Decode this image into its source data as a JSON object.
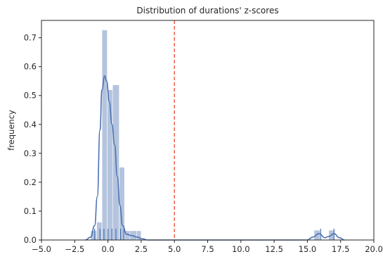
{
  "chart_data": {
    "type": "histogram",
    "title": "Distribution of durations' z-scores",
    "xlabel": "",
    "ylabel": "frequency",
    "xlim": [
      -5.0,
      20.0
    ],
    "ylim": [
      0.0,
      0.76
    ],
    "x_ticks": [
      "−5.0",
      "−2.5",
      "0.0",
      "2.5",
      "5.0",
      "7.5",
      "10.0",
      "12.5",
      "15.0",
      "17.5",
      "20.0"
    ],
    "x_tick_values": [
      -5.0,
      -2.5,
      0.0,
      2.5,
      5.0,
      7.5,
      10.0,
      12.5,
      15.0,
      17.5,
      20.0
    ],
    "y_ticks": [
      "0.0",
      "0.1",
      "0.2",
      "0.3",
      "0.4",
      "0.5",
      "0.6",
      "0.7"
    ],
    "y_tick_values": [
      0.0,
      0.1,
      0.2,
      0.3,
      0.4,
      0.5,
      0.6,
      0.7
    ],
    "bins": [
      {
        "x0": -1.3,
        "x1": -0.85,
        "y": 0.032
      },
      {
        "x0": -0.85,
        "x1": -0.45,
        "y": 0.062
      },
      {
        "x0": -0.45,
        "x1": -0.05,
        "y": 0.727
      },
      {
        "x0": -0.05,
        "x1": 0.35,
        "y": 0.52
      },
      {
        "x0": 0.35,
        "x1": 0.85,
        "y": 0.537
      },
      {
        "x0": 0.85,
        "x1": 1.25,
        "y": 0.252
      },
      {
        "x0": 1.25,
        "x1": 1.65,
        "y": 0.032
      },
      {
        "x0": 1.65,
        "x1": 2.15,
        "y": 0.032
      },
      {
        "x0": 2.15,
        "x1": 2.5,
        "y": 0.032
      },
      {
        "x0": 15.5,
        "x1": 15.95,
        "y": 0.034
      },
      {
        "x0": 16.6,
        "x1": 17.05,
        "y": 0.034
      }
    ],
    "kde": [
      [
        -1.7,
        0.0
      ],
      [
        -1.3,
        0.01
      ],
      [
        -1.0,
        0.05
      ],
      [
        -0.8,
        0.15
      ],
      [
        -0.6,
        0.38
      ],
      [
        -0.45,
        0.52
      ],
      [
        -0.25,
        0.568
      ],
      [
        -0.1,
        0.55
      ],
      [
        0.1,
        0.48
      ],
      [
        0.3,
        0.4
      ],
      [
        0.5,
        0.33
      ],
      [
        0.7,
        0.22
      ],
      [
        0.9,
        0.12
      ],
      [
        1.1,
        0.05
      ],
      [
        1.4,
        0.02
      ],
      [
        1.8,
        0.015
      ],
      [
        2.2,
        0.01
      ],
      [
        2.6,
        0.004
      ],
      [
        3.0,
        0.0
      ],
      [
        15.0,
        0.0
      ],
      [
        15.4,
        0.01
      ],
      [
        15.9,
        0.022
      ],
      [
        16.3,
        0.008
      ],
      [
        16.6,
        0.012
      ],
      [
        17.0,
        0.022
      ],
      [
        17.4,
        0.008
      ],
      [
        17.8,
        0.0
      ]
    ],
    "rug": [
      -1.0,
      -0.6,
      -0.3,
      0.0,
      0.3,
      0.6,
      0.95,
      1.2,
      16.0,
      17.0
    ],
    "threshold_line": {
      "x": 5.0
    },
    "colors": {
      "bar": "#4c72b0",
      "bar_opacity": 0.42,
      "kde": "#4c72b0",
      "rug": "#4c72b0",
      "threshold": "#e8543e",
      "axis": "#262626"
    },
    "grid": false
  }
}
